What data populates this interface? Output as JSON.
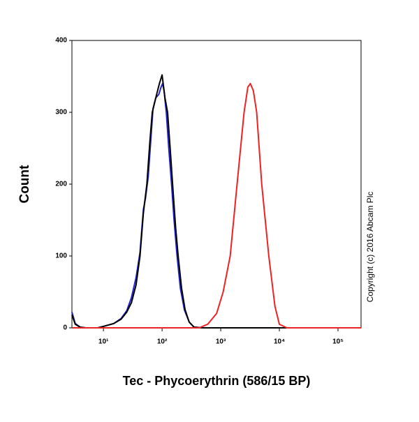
{
  "chart_data": {
    "type": "line",
    "x_label": "Tec - Phycoerythrin (586/15 BP)",
    "y_label": "Count",
    "annotation": "Copyright (c) 2016 Abcam Plc",
    "xscale": "log",
    "xlim": [
      2.9,
      247000
    ],
    "ylim": [
      0,
      400
    ],
    "xticks": [
      {
        "value": 10,
        "label": "10¹"
      },
      {
        "value": 100,
        "label": "10²"
      },
      {
        "value": 1000,
        "label": "10³"
      },
      {
        "value": 10000,
        "label": "10⁴"
      },
      {
        "value": 100000,
        "label": "10⁵"
      }
    ],
    "yticks": [
      0,
      100,
      200,
      300,
      400
    ],
    "series": [
      {
        "color": "#2222cc",
        "x": [
          2.9,
          3.3,
          4,
          5,
          8,
          10,
          15,
          20,
          25,
          30,
          36,
          42,
          48,
          52,
          58,
          64,
          70,
          78,
          88,
          96,
          102,
          108,
          118,
          130,
          145,
          160,
          180,
          205,
          240,
          290,
          350,
          500,
          247000
        ],
        "values": [
          22,
          6,
          1,
          0,
          0,
          2,
          6,
          13,
          24,
          42,
          70,
          105,
          165,
          180,
          210,
          260,
          305,
          320,
          325,
          335,
          340,
          330,
          300,
          250,
          200,
          150,
          100,
          55,
          25,
          8,
          1,
          0,
          0
        ]
      },
      {
        "color": "#000000",
        "x": [
          2.9,
          3.3,
          4,
          5,
          8,
          10,
          15,
          20,
          25,
          30,
          36,
          42,
          48,
          55,
          62,
          68,
          78,
          90,
          100,
          112,
          124,
          140,
          151,
          170,
          188,
          215,
          247,
          290,
          350,
          500,
          247000
        ],
        "values": [
          18,
          5,
          1,
          0,
          0,
          2,
          6,
          12,
          22,
          35,
          60,
          100,
          160,
          200,
          260,
          300,
          320,
          340,
          352,
          320,
          300,
          240,
          200,
          140,
          100,
          55,
          25,
          8,
          1,
          0,
          0
        ]
      },
      {
        "color": "#ee2222",
        "x": [
          2.9,
          100,
          300,
          430,
          600,
          850,
          1100,
          1450,
          1900,
          2500,
          2900,
          3200,
          3600,
          4100,
          5000,
          6600,
          8400,
          10000,
          13400,
          20000,
          247000
        ],
        "values": [
          0,
          0,
          0,
          0,
          5,
          20,
          50,
          100,
          200,
          300,
          335,
          340,
          330,
          300,
          200,
          100,
          30,
          5,
          0,
          0,
          0
        ]
      }
    ]
  }
}
